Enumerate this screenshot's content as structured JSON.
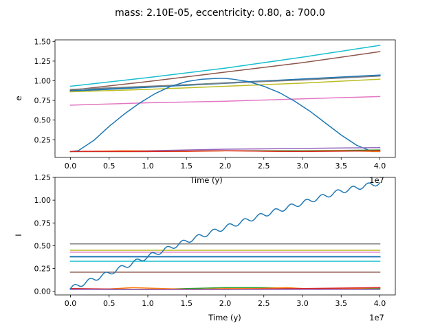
{
  "figure": {
    "suptitle": "mass: 2.10E-05, eccentricity: 0.80, a: 700.0"
  },
  "chart_data": [
    {
      "type": "line",
      "title": "",
      "xlabel": "Time (y)",
      "ylabel": "e",
      "x_offset_label": "1e7",
      "xlim": [
        -0.2,
        4.2
      ],
      "ylim": [
        0.025,
        1.52
      ],
      "xticks": [
        0.0,
        0.5,
        1.0,
        1.5,
        2.0,
        2.5,
        3.0,
        3.5,
        4.0
      ],
      "xtick_labels": [
        "0.0",
        "0.5",
        "1.0",
        "1.5",
        "2.0",
        "2.5",
        "3.0",
        "3.5",
        "4.0"
      ],
      "yticks": [
        0.25,
        0.5,
        0.75,
        1.0,
        1.25,
        1.5
      ],
      "ytick_labels": [
        "0.25",
        "0.50",
        "0.75",
        "1.00",
        "1.25",
        "1.50"
      ],
      "grid": false,
      "series": [
        {
          "color": "#17becf",
          "width": 1.5,
          "x": [
            0,
            1,
            2,
            3,
            4
          ],
          "values": [
            0.93,
            1.04,
            1.16,
            1.3,
            1.45
          ]
        },
        {
          "color": "#8c564b",
          "width": 1.5,
          "x": [
            0,
            1,
            2,
            3,
            4
          ],
          "values": [
            0.88,
            0.99,
            1.11,
            1.23,
            1.37
          ]
        },
        {
          "color": "#1f77b4",
          "width": 2.2,
          "x": [
            0,
            1,
            2,
            3,
            4
          ],
          "values": [
            0.87,
            0.92,
            0.97,
            1.02,
            1.07
          ]
        },
        {
          "color": "#7f7f7f",
          "width": 1.5,
          "x": [
            0,
            1,
            2,
            3,
            4
          ],
          "values": [
            0.89,
            0.93,
            0.97,
            1.01,
            1.06
          ]
        },
        {
          "color": "#bcbd22",
          "width": 1.5,
          "x": [
            0,
            1,
            2,
            3,
            4
          ],
          "values": [
            0.86,
            0.89,
            0.93,
            0.97,
            1.02
          ]
        },
        {
          "color": "#e377c2",
          "width": 1.5,
          "x": [
            0,
            1,
            2,
            3,
            4
          ],
          "values": [
            0.69,
            0.72,
            0.74,
            0.77,
            0.8
          ]
        },
        {
          "color": "#1f77b4",
          "width": 1.5,
          "x": [
            0.0,
            0.1,
            0.3,
            0.5,
            0.7,
            0.9,
            1.1,
            1.3,
            1.5,
            1.7,
            1.9,
            2.0,
            2.1,
            2.3,
            2.5,
            2.7,
            2.9,
            3.1,
            3.3,
            3.5,
            3.7,
            3.9,
            4.0
          ],
          "values": [
            0.1,
            0.11,
            0.24,
            0.42,
            0.58,
            0.72,
            0.84,
            0.93,
            0.99,
            1.02,
            1.03,
            1.03,
            1.02,
            0.99,
            0.93,
            0.85,
            0.74,
            0.61,
            0.46,
            0.31,
            0.18,
            0.1,
            0.1
          ]
        },
        {
          "color": "#9467bd",
          "width": 1.5,
          "x": [
            0,
            1,
            2,
            3,
            4
          ],
          "values": [
            0.1,
            0.11,
            0.13,
            0.14,
            0.15
          ]
        },
        {
          "color": "#2ca02c",
          "width": 1.5,
          "x": [
            0,
            1,
            2,
            3,
            4
          ],
          "values": [
            0.1,
            0.1,
            0.11,
            0.11,
            0.12
          ]
        },
        {
          "color": "#ff7f0e",
          "width": 1.5,
          "x": [
            0,
            0.7,
            1.4,
            2.1,
            2.8,
            3.5,
            4.0
          ],
          "values": [
            0.1,
            0.11,
            0.1,
            0.11,
            0.1,
            0.11,
            0.1
          ]
        },
        {
          "color": "#d62728",
          "width": 1.5,
          "x": [
            0,
            1,
            2,
            3,
            4
          ],
          "values": [
            0.1,
            0.1,
            0.11,
            0.1,
            0.11
          ]
        }
      ]
    },
    {
      "type": "line",
      "title": "",
      "xlabel": "Time (y)",
      "ylabel": "I",
      "x_offset_label": "1e7",
      "xlim": [
        -0.2,
        4.2
      ],
      "ylim": [
        -0.04,
        1.25
      ],
      "xticks": [
        0.0,
        0.5,
        1.0,
        1.5,
        2.0,
        2.5,
        3.0,
        3.5,
        4.0
      ],
      "xtick_labels": [
        "0.0",
        "0.5",
        "1.0",
        "1.5",
        "2.0",
        "2.5",
        "3.0",
        "3.5",
        "4.0"
      ],
      "yticks": [
        0.0,
        0.25,
        0.5,
        0.75,
        1.0,
        1.25
      ],
      "ytick_labels": [
        "0.00",
        "0.25",
        "0.50",
        "0.75",
        "1.00",
        "1.25"
      ],
      "grid": false,
      "series": [
        {
          "color": "#7f7f7f",
          "width": 1.5,
          "x": [
            0,
            4
          ],
          "values": [
            0.52,
            0.52
          ]
        },
        {
          "color": "#bcbd22",
          "width": 1.5,
          "x": [
            0,
            4
          ],
          "values": [
            0.45,
            0.45
          ]
        },
        {
          "color": "#e377c2",
          "width": 1.5,
          "x": [
            0,
            4
          ],
          "values": [
            0.43,
            0.43
          ]
        },
        {
          "color": "#1f77b4",
          "width": 2.0,
          "x": [
            0,
            4
          ],
          "values": [
            0.38,
            0.38
          ]
        },
        {
          "color": "#17becf",
          "width": 1.5,
          "x": [
            0,
            4
          ],
          "values": [
            0.33,
            0.33
          ]
        },
        {
          "color": "#8c564b",
          "width": 1.5,
          "x": [
            0,
            4
          ],
          "values": [
            0.21,
            0.21
          ]
        },
        {
          "color": "#2ca02c",
          "width": 1.5,
          "x": [
            0,
            0.5,
            1.0,
            1.5,
            2.0,
            2.5,
            3.0,
            3.5,
            4.0
          ],
          "values": [
            0.03,
            0.02,
            0.02,
            0.03,
            0.04,
            0.04,
            0.03,
            0.03,
            0.03
          ]
        },
        {
          "color": "#ff7f0e",
          "width": 1.5,
          "x": [
            0,
            0.4,
            0.8,
            1.2,
            1.6,
            2.0,
            2.4,
            2.8,
            3.2,
            3.6,
            4.0
          ],
          "values": [
            0.03,
            0.02,
            0.04,
            0.03,
            0.02,
            0.03,
            0.03,
            0.04,
            0.02,
            0.03,
            0.04
          ]
        },
        {
          "color": "#d62728",
          "width": 1.5,
          "x": [
            0,
            1,
            2,
            3,
            4
          ],
          "values": [
            0.03,
            0.02,
            0.02,
            0.03,
            0.04
          ]
        },
        {
          "color": "#9467bd",
          "width": 1.5,
          "x": [
            0,
            1,
            2,
            3,
            4
          ],
          "values": [
            0.02,
            0.02,
            0.02,
            0.02,
            0.02
          ]
        },
        {
          "color": "#1f77b4",
          "width": 1.5,
          "oscillation": {
            "amplitude": 0.025,
            "period": 0.2
          },
          "x": [
            0.0,
            0.5,
            1.0,
            1.5,
            2.0,
            2.5,
            3.0,
            3.5,
            4.0
          ],
          "values": [
            0.03,
            0.2,
            0.38,
            0.55,
            0.7,
            0.84,
            0.97,
            1.1,
            1.19
          ]
        }
      ]
    }
  ]
}
